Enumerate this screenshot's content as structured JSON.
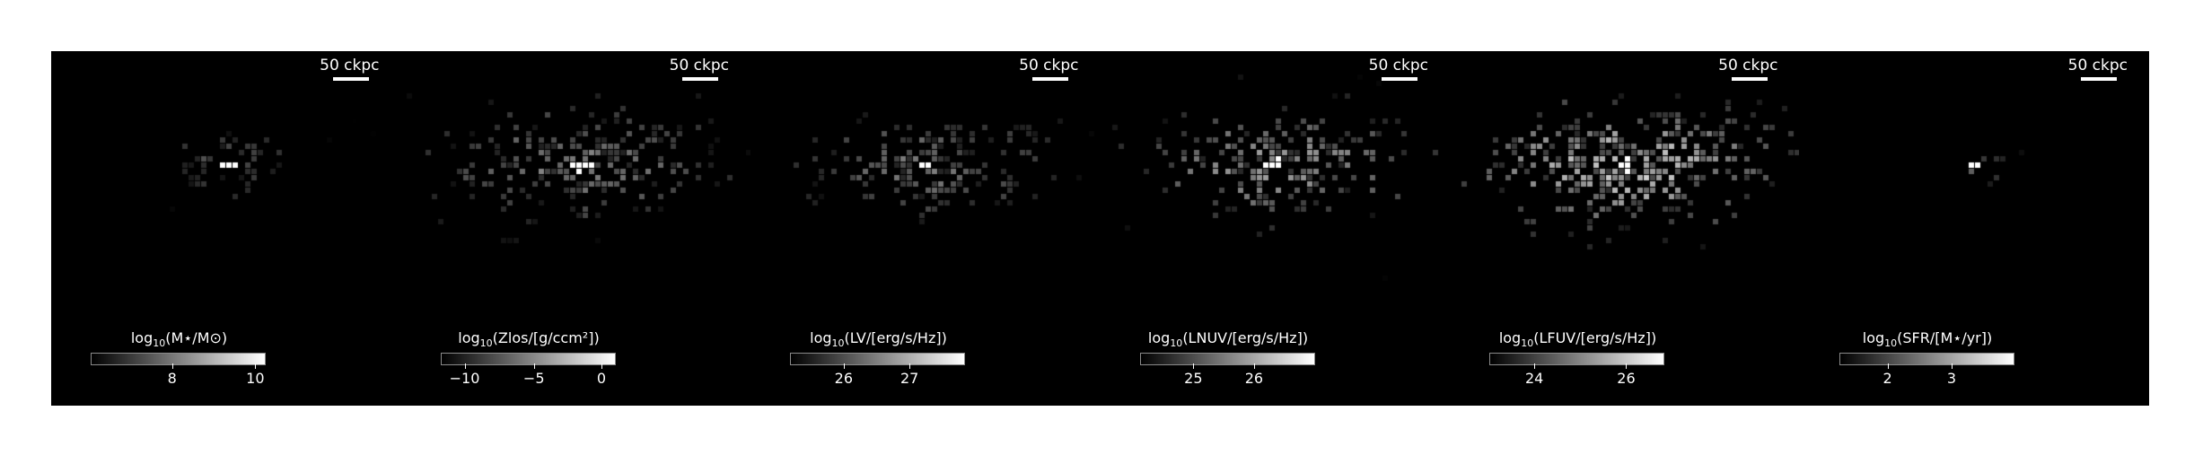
{
  "figure": {
    "background": "#ffffff",
    "panel_background": "#000000",
    "panels": [
      {
        "name": "stellar-mass",
        "scale_label": "50 ckpc",
        "colorbar": {
          "prefix": "log",
          "sub": "10",
          "label": "(M⋆/M⊙)",
          "ticks": [
            "8",
            "10"
          ],
          "tick_pos": [
            0.47,
            0.95
          ]
        },
        "map": {
          "spread": 0.28,
          "density": 0.32,
          "seed": 11,
          "peak": 1.0,
          "bright": 0.35
        }
      },
      {
        "name": "metallicity",
        "scale_label": "50 ckpc",
        "colorbar": {
          "prefix": "log",
          "sub": "10",
          "label": "(Zlos/[g/ccm²])",
          "ticks": [
            "−10",
            "−5",
            "0"
          ],
          "tick_pos": [
            0.14,
            0.54,
            0.93
          ]
        },
        "map": {
          "spread": 0.55,
          "density": 0.55,
          "seed": 23,
          "peak": 1.0,
          "bright": 0.55
        }
      },
      {
        "name": "v-band-luminosity",
        "scale_label": "50 ckpc",
        "colorbar": {
          "prefix": "log",
          "sub": "10",
          "label": "(LV/[erg/s/Hz])",
          "ticks": [
            "26",
            "27"
          ],
          "tick_pos": [
            0.31,
            0.69
          ]
        },
        "map": {
          "spread": 0.5,
          "density": 0.5,
          "seed": 37,
          "peak": 1.0,
          "bright": 0.5
        }
      },
      {
        "name": "nuv-luminosity",
        "scale_label": "50 ckpc",
        "colorbar": {
          "prefix": "log",
          "sub": "10",
          "label": "(LNUV/[erg/s/Hz])",
          "ticks": [
            "25",
            "26"
          ],
          "tick_pos": [
            0.31,
            0.66
          ]
        },
        "map": {
          "spread": 0.55,
          "density": 0.58,
          "seed": 51,
          "peak": 1.0,
          "bright": 0.65
        }
      },
      {
        "name": "fuv-luminosity",
        "scale_label": "50 ckpc",
        "colorbar": {
          "prefix": "log",
          "sub": "10",
          "label": "(LFUV/[erg/s/Hz])",
          "ticks": [
            "24",
            "26"
          ],
          "tick_pos": [
            0.26,
            0.79
          ]
        },
        "map": {
          "spread": 0.58,
          "density": 0.62,
          "seed": 67,
          "peak": 1.0,
          "bright": 0.85
        }
      },
      {
        "name": "star-formation-rate",
        "scale_label": "50 ckpc",
        "colorbar": {
          "prefix": "log",
          "sub": "10",
          "label": "(SFR/[M⋆/yr])",
          "ticks": [
            "2",
            "3"
          ],
          "tick_pos": [
            0.28,
            0.65
          ]
        },
        "map": {
          "spread": 0.08,
          "density": 0.2,
          "seed": 83,
          "peak": 1.0,
          "bright": 0.5
        }
      }
    ]
  }
}
